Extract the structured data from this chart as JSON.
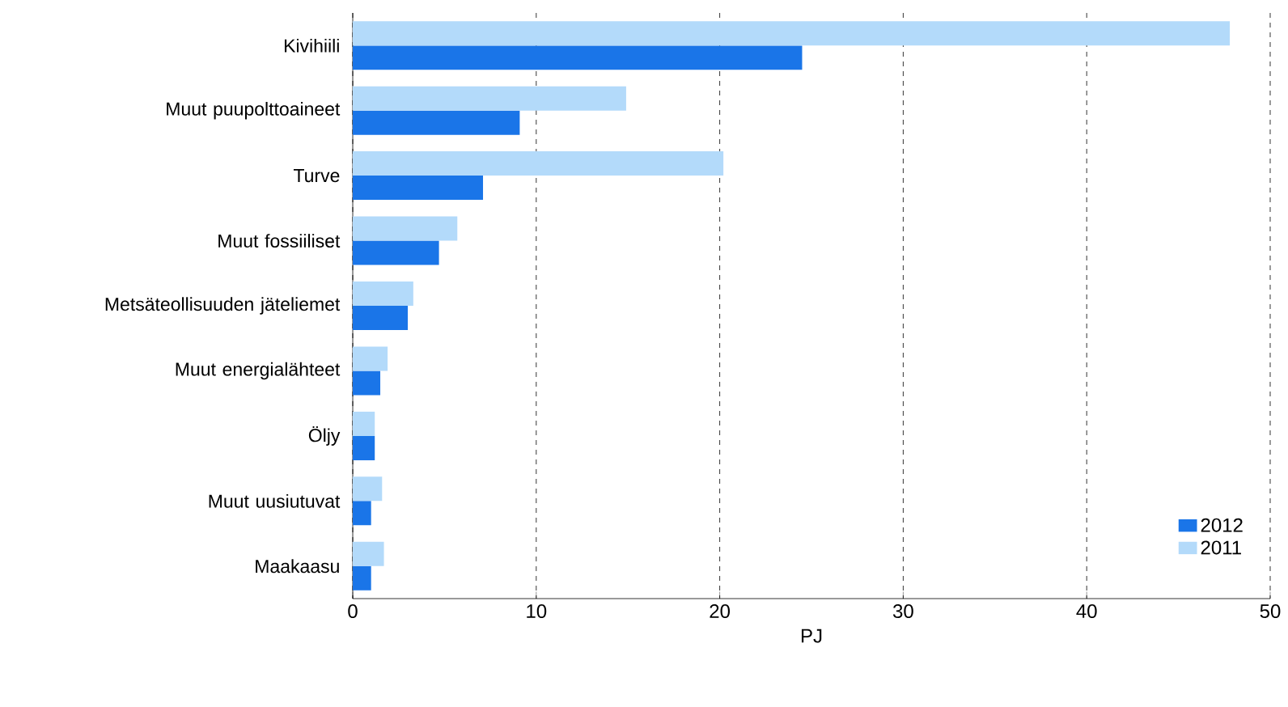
{
  "chart_data": {
    "type": "bar",
    "orientation": "horizontal",
    "xlabel": "PJ",
    "categories": [
      "Kivihiili",
      "Muut puupolttoaineet",
      "Turve",
      "Muut fossiiliset",
      "Metsäteollisuuden jäteliemet",
      "Muut energialähteet",
      "Öljy",
      "Muut uusiutuvat",
      "Maakaasu"
    ],
    "series": [
      {
        "name": "2012",
        "color": "#1a75e8",
        "values": [
          24.5,
          9.1,
          7.1,
          4.7,
          3.0,
          1.5,
          1.2,
          1.0,
          1.0
        ]
      },
      {
        "name": "2011",
        "color": "#b3dafa",
        "values": [
          47.8,
          14.9,
          20.2,
          5.7,
          3.3,
          1.9,
          1.2,
          1.6,
          1.7
        ]
      }
    ],
    "xlim": [
      0,
      50
    ],
    "xticks": [
      0,
      10,
      20,
      30,
      40,
      50
    ],
    "grid": "x",
    "legend": "bottom right"
  }
}
